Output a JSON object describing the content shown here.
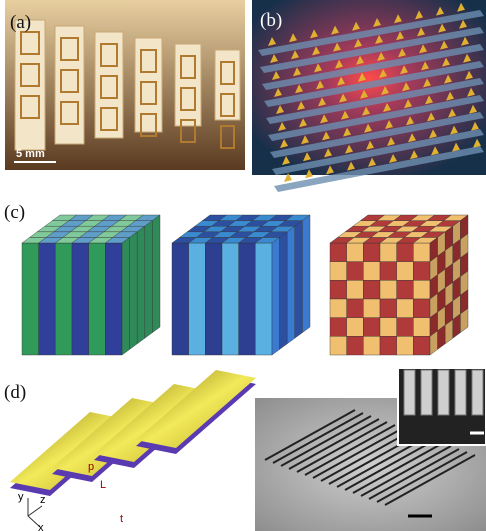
{
  "panels": {
    "a": {
      "label": "(a)",
      "scale": "5 mm"
    },
    "b": {
      "label": "(b)"
    },
    "c": {
      "label": "(c)"
    },
    "d": {
      "label": "(d)",
      "dims": [
        "p",
        "L",
        "t"
      ],
      "axes": [
        "y",
        "z",
        "x"
      ]
    }
  }
}
